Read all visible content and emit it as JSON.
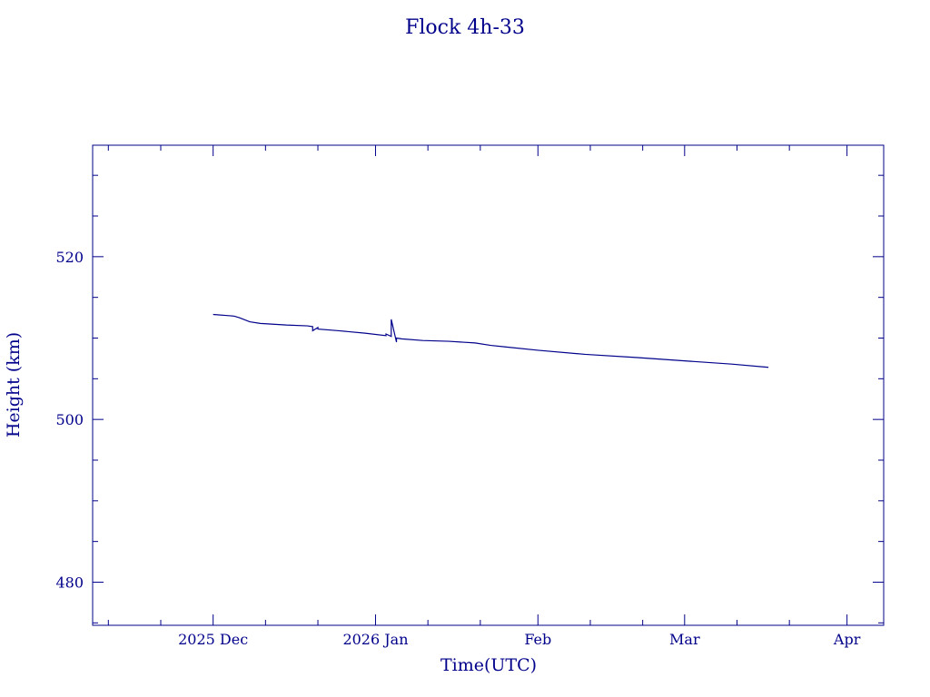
{
  "chart_data": {
    "type": "line",
    "title": "Flock 4h-33",
    "xlabel": "Time(UTC)",
    "ylabel": "Height (km)",
    "color": "#00008b",
    "grid": false,
    "legend": "none",
    "xlim": [
      "2025-11-08",
      "2026-04-08"
    ],
    "ylim": [
      474.7,
      533.7
    ],
    "x_ticks": [
      {
        "date": "2025-12-01",
        "label": "2025 Dec"
      },
      {
        "date": "2026-01-01",
        "label": "2026 Jan"
      },
      {
        "date": "2026-02-01",
        "label": "Feb"
      },
      {
        "date": "2026-03-01",
        "label": "Mar"
      },
      {
        "date": "2026-04-01",
        "label": "Apr"
      }
    ],
    "y_ticks": [
      480,
      500,
      520
    ],
    "series": [
      {
        "x": [
          "2025-12-01",
          "2025-12-05",
          "2025-12-06",
          "2025-12-08",
          "2025-12-10",
          "2025-12-15",
          "2025-12-19",
          "2025-12-20",
          "2025-12-20",
          "2025-12-21",
          "2025-12-21",
          "2025-12-25",
          "2025-12-30",
          "2026-01-03",
          "2026-01-03",
          "2026-01-04",
          "2026-01-04",
          "2026-01-05",
          "2026-01-05",
          "2026-01-06",
          "2026-01-10",
          "2026-01-15",
          "2026-01-20",
          "2026-01-23",
          "2026-01-26",
          "2026-02-01",
          "2026-02-10",
          "2026-02-20",
          "2026-03-01",
          "2026-03-10",
          "2026-03-17"
        ],
        "y": [
          512.9,
          512.7,
          512.5,
          512.0,
          511.8,
          511.6,
          511.5,
          511.4,
          510.9,
          511.3,
          511.1,
          510.9,
          510.6,
          510.3,
          510.5,
          510.2,
          512.3,
          509.5,
          510.0,
          509.9,
          509.7,
          509.6,
          509.4,
          509.1,
          508.9,
          508.5,
          508.0,
          507.6,
          507.2,
          506.8,
          506.4
        ]
      }
    ]
  }
}
